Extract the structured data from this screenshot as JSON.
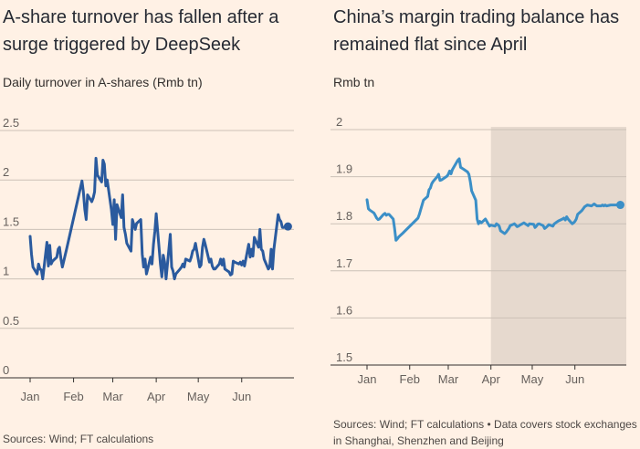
{
  "chart_data": [
    {
      "type": "line",
      "title": "A-share turnover has fallen after a surge triggered by DeepSeek",
      "subtitle": "Daily turnover in A-shares (Rmb tn)",
      "source": "Sources: Wind; FT calculations",
      "ylim": [
        0,
        2.5
      ],
      "yticks": [
        "0",
        "0.5",
        "1",
        "1.5",
        "2",
        "2.5"
      ],
      "xticks": [
        "Jan",
        "Feb",
        "Mar",
        "Apr",
        "May",
        "Jun"
      ],
      "xtick_days": [
        1,
        32,
        60,
        91,
        121,
        152
      ],
      "xlim_days": [
        1,
        188
      ],
      "grid": true,
      "color": "#2a5a9e",
      "series": [
        {
          "x": [
            1,
            2,
            3,
            6,
            7,
            8,
            9,
            10,
            13,
            14,
            15,
            16,
            17,
            20,
            21,
            22,
            23,
            24,
            27,
            38,
            39,
            40,
            41,
            42,
            45,
            46,
            47,
            48,
            49,
            52,
            53,
            54,
            55,
            56,
            59,
            60,
            61,
            62,
            63,
            66,
            67,
            68,
            69,
            70,
            73,
            74,
            75,
            76,
            77,
            80,
            81,
            82,
            83,
            84,
            87,
            88,
            89,
            90,
            91,
            94,
            95,
            96,
            97,
            98,
            101,
            102,
            103,
            104,
            105,
            108,
            109,
            110,
            111,
            112,
            115,
            116,
            117,
            118,
            119,
            122,
            123,
            124,
            125,
            126,
            129,
            130,
            131,
            132,
            133,
            136,
            137,
            138,
            139,
            140,
            143,
            144,
            145,
            146,
            147,
            150,
            151,
            152,
            153,
            154,
            157,
            158,
            159,
            160,
            161,
            164,
            165,
            166,
            167,
            168,
            171,
            172,
            173,
            174,
            175,
            178,
            179,
            180,
            181,
            182,
            185
          ],
          "y": [
            1.43,
            1.25,
            1.12,
            1.05,
            1.15,
            1.1,
            1.09,
            1.0,
            1.37,
            1.13,
            1.34,
            1.15,
            1.18,
            1.22,
            1.3,
            1.32,
            1.2,
            1.12,
            1.3,
            1.99,
            1.88,
            1.7,
            1.6,
            1.85,
            1.78,
            1.82,
            1.88,
            2.22,
            2.05,
            1.98,
            2.2,
            2.16,
            1.94,
            2.0,
            1.7,
            1.55,
            1.8,
            1.4,
            1.75,
            1.62,
            1.85,
            1.52,
            1.45,
            1.36,
            1.28,
            1.6,
            1.55,
            1.5,
            1.56,
            1.6,
            1.25,
            1.12,
            1.2,
            1.05,
            1.22,
            1.15,
            1.35,
            1.48,
            1.66,
            1.15,
            1.02,
            1.24,
            1.17,
            1.0,
            1.45,
            1.12,
            1.08,
            1.0,
            1.05,
            1.1,
            1.12,
            1.15,
            1.12,
            1.2,
            1.18,
            1.22,
            1.28,
            1.3,
            1.36,
            1.12,
            1.14,
            1.32,
            1.4,
            1.35,
            1.17,
            1.2,
            1.13,
            1.1,
            1.1,
            1.15,
            1.2,
            1.14,
            1.2,
            1.1,
            1.07,
            1.04,
            1.05,
            1.18,
            1.17,
            1.15,
            1.17,
            1.14,
            1.18,
            1.13,
            1.35,
            1.22,
            1.3,
            1.23,
            1.42,
            1.32,
            1.5,
            1.3,
            1.28,
            1.2,
            1.1,
            1.12,
            1.3,
            1.1,
            1.3,
            1.65,
            1.6,
            1.58,
            1.52,
            1.52,
            1.53
          ]
        }
      ]
    },
    {
      "type": "line",
      "title": "China’s margin trading balance has remained flat since April",
      "subtitle": "Rmb tn",
      "source": "Sources: Wind; FT calculations • Data covers stock exchanges in Shanghai, Shenzhen and Beijing",
      "ylim": [
        1.5,
        2
      ],
      "yticks": [
        "1.5",
        "1.6",
        "1.7",
        "1.8",
        "1.9",
        "2"
      ],
      "xticks": [
        "Jan",
        "Feb",
        "Mar",
        "Apr",
        "May",
        "Jun"
      ],
      "xtick_days": [
        1,
        32,
        60,
        91,
        121,
        152
      ],
      "xlim_days": [
        1,
        188
      ],
      "shaded_from_day": 91,
      "grid": true,
      "color": "#3b8fc7",
      "series": [
        {
          "x": [
            1,
            2,
            3,
            6,
            7,
            8,
            9,
            10,
            13,
            14,
            15,
            16,
            17,
            20,
            21,
            22,
            23,
            24,
            27,
            38,
            39,
            40,
            41,
            42,
            45,
            46,
            47,
            48,
            49,
            52,
            53,
            54,
            55,
            56,
            59,
            60,
            61,
            62,
            63,
            66,
            67,
            68,
            69,
            70,
            73,
            74,
            75,
            76,
            77,
            80,
            81,
            82,
            83,
            84,
            87,
            88,
            89,
            90,
            91,
            94,
            95,
            96,
            97,
            98,
            101,
            102,
            103,
            104,
            105,
            108,
            109,
            110,
            111,
            112,
            115,
            116,
            117,
            118,
            119,
            122,
            123,
            124,
            125,
            126,
            129,
            130,
            131,
            132,
            133,
            136,
            137,
            138,
            139,
            140,
            143,
            144,
            145,
            146,
            147,
            150,
            151,
            152,
            153,
            154,
            157,
            158,
            159,
            160,
            161,
            164,
            165,
            166,
            167,
            168,
            171,
            172,
            173,
            174,
            175,
            178,
            179,
            180,
            181,
            182,
            185
          ],
          "y": [
            1.851,
            1.832,
            1.829,
            1.823,
            1.818,
            1.812,
            1.809,
            1.81,
            1.82,
            1.822,
            1.818,
            1.82,
            1.82,
            1.81,
            1.79,
            1.765,
            1.768,
            1.772,
            1.78,
            1.812,
            1.82,
            1.83,
            1.84,
            1.85,
            1.858,
            1.872,
            1.876,
            1.885,
            1.89,
            1.9,
            1.905,
            1.892,
            1.893,
            1.895,
            1.901,
            1.905,
            1.912,
            1.906,
            1.915,
            1.93,
            1.935,
            1.938,
            1.92,
            1.918,
            1.912,
            1.91,
            1.905,
            1.89,
            1.87,
            1.85,
            1.81,
            1.8,
            1.805,
            1.802,
            1.81,
            1.805,
            1.8,
            1.795,
            1.797,
            1.795,
            1.8,
            1.798,
            1.795,
            1.785,
            1.779,
            1.782,
            1.786,
            1.79,
            1.796,
            1.8,
            1.797,
            1.794,
            1.795,
            1.797,
            1.802,
            1.8,
            1.798,
            1.796,
            1.8,
            1.799,
            1.792,
            1.795,
            1.799,
            1.8,
            1.796,
            1.79,
            1.792,
            1.795,
            1.798,
            1.795,
            1.8,
            1.802,
            1.804,
            1.806,
            1.81,
            1.812,
            1.808,
            1.815,
            1.81,
            1.8,
            1.802,
            1.805,
            1.81,
            1.82,
            1.828,
            1.832,
            1.836,
            1.838,
            1.84,
            1.838,
            1.84,
            1.842,
            1.84,
            1.838,
            1.838,
            1.84,
            1.838,
            1.84,
            1.838,
            1.84,
            1.84,
            1.84,
            1.84,
            1.84,
            1.84
          ]
        }
      ]
    }
  ]
}
